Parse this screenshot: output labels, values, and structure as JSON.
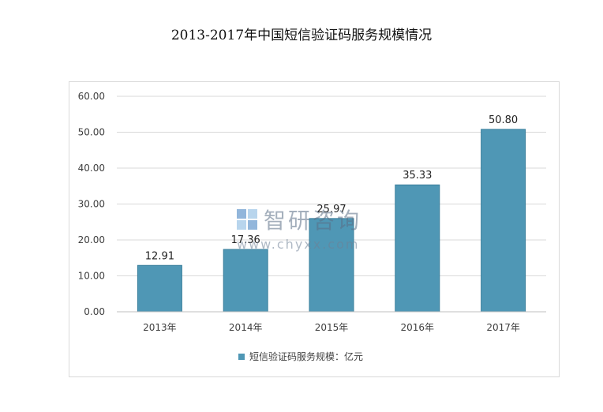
{
  "title": "2013-2017年中国短信验证码服务规模情况",
  "watermark": {
    "name": "智研咨询",
    "url": "www.chyxx.com"
  },
  "chart_data": {
    "type": "bar",
    "categories": [
      "2013年",
      "2014年",
      "2015年",
      "2016年",
      "2017年"
    ],
    "series": [
      {
        "name": "短信验证码服务规模：亿元",
        "values": [
          12.91,
          17.36,
          25.97,
          35.33,
          50.8
        ]
      }
    ],
    "data_labels": [
      "12.91",
      "17.36",
      "25.97",
      "35.33",
      "50.80"
    ],
    "yticks": [
      "0.00",
      "10.00",
      "20.00",
      "30.00",
      "40.00",
      "50.00",
      "60.00"
    ],
    "ylim": [
      0,
      60
    ],
    "grid": true,
    "legend_position": "bottom",
    "colors": {
      "bar": "#4f97b5",
      "bar_edge": "#3a7f9c",
      "grid": "#d9d9d9"
    }
  }
}
